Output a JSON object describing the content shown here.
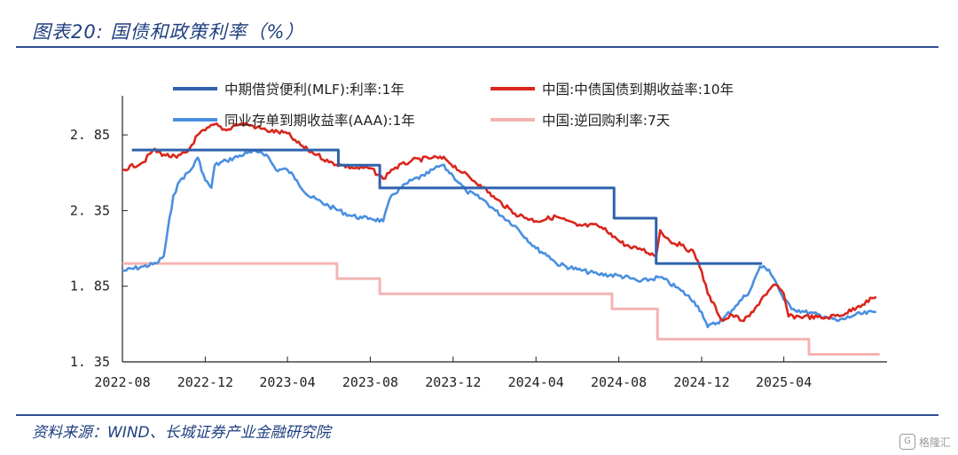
{
  "title": "图表20:  国债和政策利率（%）",
  "source": "资料来源：WIND、长城证券产业金融研究院",
  "watermark": "格隆汇",
  "chart_data": {
    "type": "line",
    "ylim": [
      1.35,
      3.05
    ],
    "y_ticks": [
      1.35,
      1.85,
      2.35,
      2.85
    ],
    "y_tick_labels": [
      "1. 35",
      "1. 85",
      "2. 35",
      "2. 85"
    ],
    "x_ticks": [
      "2022-08",
      "2022-12",
      "2023-04",
      "2023-08",
      "2023-12",
      "2024-04",
      "2024-08",
      "2024-12",
      "2025-04"
    ],
    "x_range_months": [
      "2022-08",
      "2025-08"
    ],
    "legend_placement": "top",
    "series": [
      {
        "name": "中期借贷便利(MLF):利率:1年",
        "color": "#2e62ad",
        "style": "step",
        "points": [
          [
            "2022-08-15",
            2.75
          ],
          [
            "2023-06-15",
            2.65
          ],
          [
            "2023-08-15",
            2.5
          ],
          [
            "2024-07-25",
            2.3
          ],
          [
            "2024-09-25",
            2.0
          ],
          [
            "2025-02-28",
            2.0
          ]
        ]
      },
      {
        "name": "中国:中债国债到期收益率:10年",
        "color": "#d9261c",
        "style": "noisy",
        "points": [
          [
            "2022-08-01",
            2.62
          ],
          [
            "2022-09-01",
            2.67
          ],
          [
            "2022-09-15",
            2.75
          ],
          [
            "2022-10-01",
            2.72
          ],
          [
            "2022-10-20",
            2.7
          ],
          [
            "2022-11-05",
            2.74
          ],
          [
            "2022-11-20",
            2.85
          ],
          [
            "2022-12-01",
            2.88
          ],
          [
            "2022-12-15",
            2.92
          ],
          [
            "2023-01-01",
            2.88
          ],
          [
            "2023-01-15",
            2.92
          ],
          [
            "2023-02-01",
            2.92
          ],
          [
            "2023-02-15",
            2.9
          ],
          [
            "2023-03-01",
            2.88
          ],
          [
            "2023-04-01",
            2.86
          ],
          [
            "2023-04-15",
            2.8
          ],
          [
            "2023-05-01",
            2.75
          ],
          [
            "2023-05-15",
            2.72
          ],
          [
            "2023-06-01",
            2.67
          ],
          [
            "2023-06-20",
            2.65
          ],
          [
            "2023-07-10",
            2.63
          ],
          [
            "2023-08-01",
            2.63
          ],
          [
            "2023-08-20",
            2.56
          ],
          [
            "2023-09-01",
            2.62
          ],
          [
            "2023-10-01",
            2.68
          ],
          [
            "2023-11-01",
            2.7
          ],
          [
            "2023-11-20",
            2.69
          ],
          [
            "2023-12-15",
            2.6
          ],
          [
            "2024-01-10",
            2.52
          ],
          [
            "2024-02-01",
            2.43
          ],
          [
            "2024-03-01",
            2.33
          ],
          [
            "2024-04-01",
            2.28
          ],
          [
            "2024-05-01",
            2.31
          ],
          [
            "2024-06-01",
            2.25
          ],
          [
            "2024-07-01",
            2.25
          ],
          [
            "2024-07-20",
            2.2
          ],
          [
            "2024-08-01",
            2.15
          ],
          [
            "2024-08-20",
            2.1
          ],
          [
            "2024-09-01",
            2.1
          ],
          [
            "2024-09-25",
            2.05
          ],
          [
            "2024-10-01",
            2.22
          ],
          [
            "2024-10-15",
            2.15
          ],
          [
            "2024-11-01",
            2.12
          ],
          [
            "2024-11-20",
            2.07
          ],
          [
            "2024-12-01",
            1.95
          ],
          [
            "2024-12-10",
            1.8
          ],
          [
            "2025-01-01",
            1.62
          ],
          [
            "2025-01-15",
            1.66
          ],
          [
            "2025-02-01",
            1.62
          ],
          [
            "2025-02-15",
            1.68
          ],
          [
            "2025-03-01",
            1.78
          ],
          [
            "2025-03-20",
            1.86
          ],
          [
            "2025-04-01",
            1.8
          ],
          [
            "2025-04-08",
            1.65
          ],
          [
            "2025-05-01",
            1.65
          ],
          [
            "2025-06-01",
            1.64
          ],
          [
            "2025-07-01",
            1.67
          ],
          [
            "2025-07-20",
            1.72
          ],
          [
            "2025-08-15",
            1.78
          ]
        ]
      },
      {
        "name": "同业存单到期收益率(AAA):1年",
        "color": "#4a8fe0",
        "style": "noisy",
        "points": [
          [
            "2022-08-01",
            1.95
          ],
          [
            "2022-09-01",
            1.98
          ],
          [
            "2022-09-20",
            2.0
          ],
          [
            "2022-10-01",
            2.05
          ],
          [
            "2022-10-15",
            2.45
          ],
          [
            "2022-10-25",
            2.55
          ],
          [
            "2022-11-10",
            2.62
          ],
          [
            "2022-11-20",
            2.7
          ],
          [
            "2022-12-01",
            2.55
          ],
          [
            "2022-12-10",
            2.5
          ],
          [
            "2022-12-15",
            2.65
          ],
          [
            "2023-01-01",
            2.68
          ],
          [
            "2023-02-01",
            2.73
          ],
          [
            "2023-02-20",
            2.74
          ],
          [
            "2023-03-01",
            2.72
          ],
          [
            "2023-03-15",
            2.62
          ],
          [
            "2023-04-01",
            2.62
          ],
          [
            "2023-04-15",
            2.55
          ],
          [
            "2023-05-01",
            2.45
          ],
          [
            "2023-06-01",
            2.38
          ],
          [
            "2023-07-01",
            2.32
          ],
          [
            "2023-07-20",
            2.3
          ],
          [
            "2023-08-01",
            2.3
          ],
          [
            "2023-08-20",
            2.28
          ],
          [
            "2023-09-01",
            2.45
          ],
          [
            "2023-10-01",
            2.55
          ],
          [
            "2023-10-20",
            2.58
          ],
          [
            "2023-11-01",
            2.62
          ],
          [
            "2023-11-15",
            2.65
          ],
          [
            "2023-12-01",
            2.58
          ],
          [
            "2023-12-20",
            2.48
          ],
          [
            "2024-01-15",
            2.42
          ],
          [
            "2024-02-01",
            2.35
          ],
          [
            "2024-03-01",
            2.25
          ],
          [
            "2024-04-01",
            2.1
          ],
          [
            "2024-04-20",
            2.05
          ],
          [
            "2024-05-01",
            2.0
          ],
          [
            "2024-06-01",
            1.96
          ],
          [
            "2024-07-01",
            1.93
          ],
          [
            "2024-08-01",
            1.92
          ],
          [
            "2024-08-20",
            1.9
          ],
          [
            "2024-09-01",
            1.88
          ],
          [
            "2024-10-01",
            1.91
          ],
          [
            "2024-11-01",
            1.82
          ],
          [
            "2024-11-20",
            1.75
          ],
          [
            "2024-12-01",
            1.68
          ],
          [
            "2024-12-10",
            1.58
          ],
          [
            "2025-01-01",
            1.63
          ],
          [
            "2025-01-20",
            1.72
          ],
          [
            "2025-02-10",
            1.82
          ],
          [
            "2025-02-25",
            1.98
          ],
          [
            "2025-03-10",
            1.96
          ],
          [
            "2025-03-20",
            1.88
          ],
          [
            "2025-04-01",
            1.76
          ],
          [
            "2025-04-15",
            1.7
          ],
          [
            "2025-05-01",
            1.68
          ],
          [
            "2025-06-01",
            1.65
          ],
          [
            "2025-06-20",
            1.62
          ],
          [
            "2025-07-15",
            1.66
          ],
          [
            "2025-08-15",
            1.68
          ]
        ]
      },
      {
        "name": "中国:逆回购利率:7天",
        "color": "#f4b3b3",
        "style": "step",
        "points": [
          [
            "2022-08-01",
            2.0
          ],
          [
            "2023-06-13",
            1.9
          ],
          [
            "2023-08-15",
            1.8
          ],
          [
            "2024-07-22",
            1.7
          ],
          [
            "2024-09-27",
            1.5
          ],
          [
            "2025-05-08",
            1.4
          ],
          [
            "2025-08-20",
            1.4
          ]
        ]
      }
    ]
  }
}
